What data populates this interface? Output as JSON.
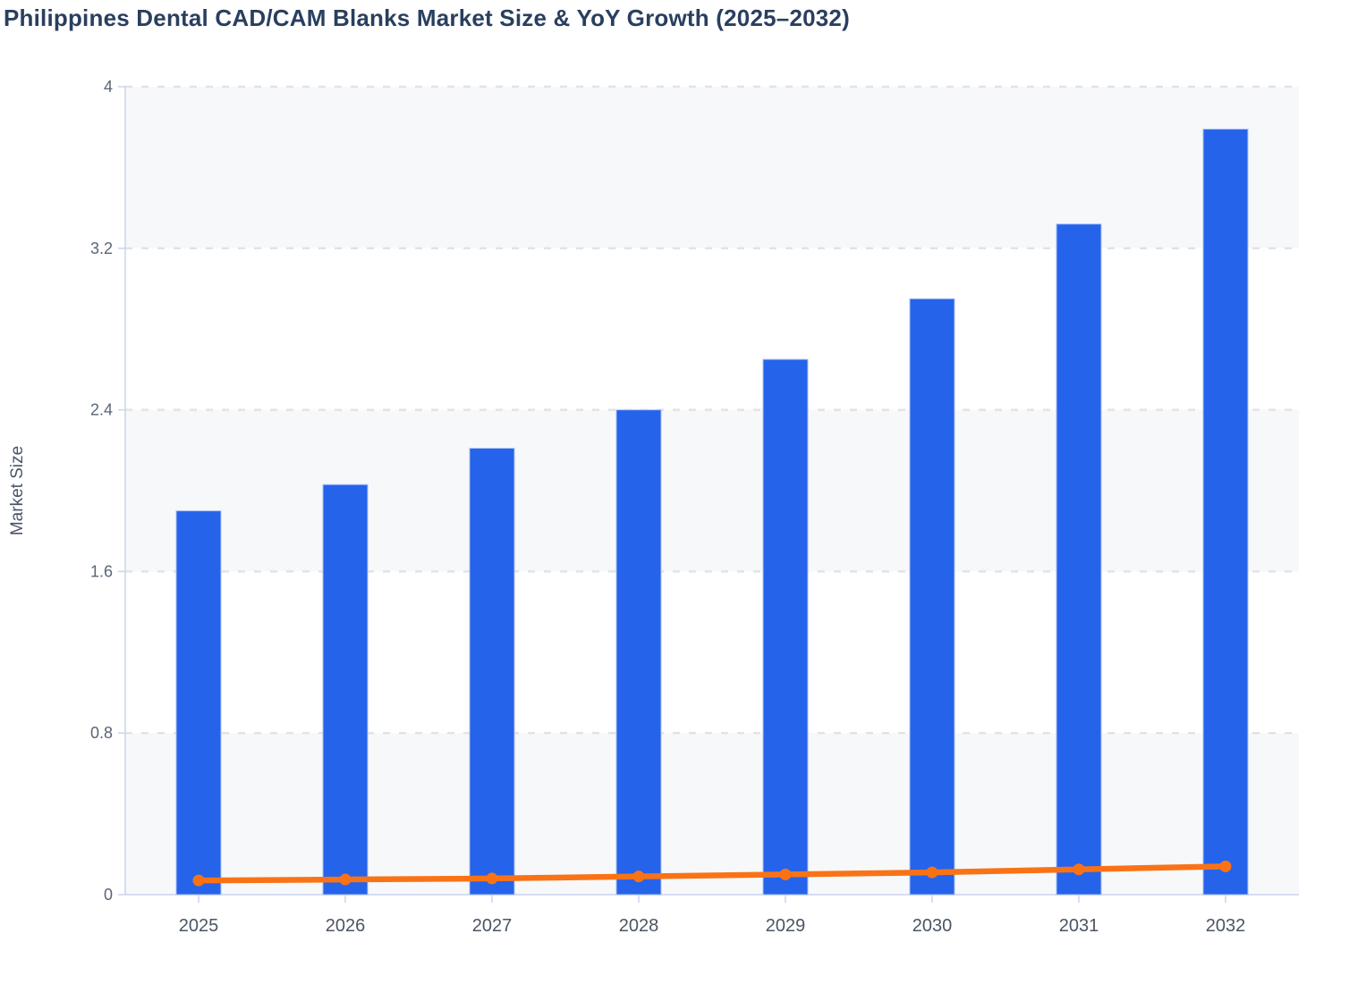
{
  "chart_data": {
    "type": "combo-bar-line",
    "title": "Philippines Dental CAD/CAM Blanks Market Size & YoY Growth (2025–2032)",
    "ylabel": "Market Size",
    "xlabel": "",
    "categories": [
      "2025",
      "2026",
      "2027",
      "2028",
      "2029",
      "2030",
      "2031",
      "2032"
    ],
    "series": [
      {
        "name": "Market Size",
        "type": "bar",
        "color": "#2563eb",
        "values": [
          1.9,
          2.03,
          2.21,
          2.4,
          2.65,
          2.95,
          3.32,
          3.79
        ]
      },
      {
        "name": "YoY Growth",
        "type": "line",
        "color": "#f97316",
        "values": [
          0.07,
          0.075,
          0.08,
          0.09,
          0.1,
          0.11,
          0.125,
          0.14
        ]
      }
    ],
    "ylim": [
      0,
      4
    ],
    "y_ticks": [
      "0",
      "0.8",
      "1.6",
      "2.4",
      "3.2",
      "4"
    ],
    "grid": "dashed-horizontal",
    "plot_bands": "alternating-horizontal",
    "legend": "none"
  },
  "colors": {
    "bar": "#2563eb",
    "bar_border": "#a9bff2",
    "line": "#f97316",
    "title": "#2a3f5f",
    "axis": "#ccd3ee",
    "grid": "#e2e3e7",
    "band": "#f7f8fa",
    "y_tick_text": "#5a6575",
    "x_tick_text": "#4b5563",
    "y_axis_title_text": "#4a5568"
  }
}
